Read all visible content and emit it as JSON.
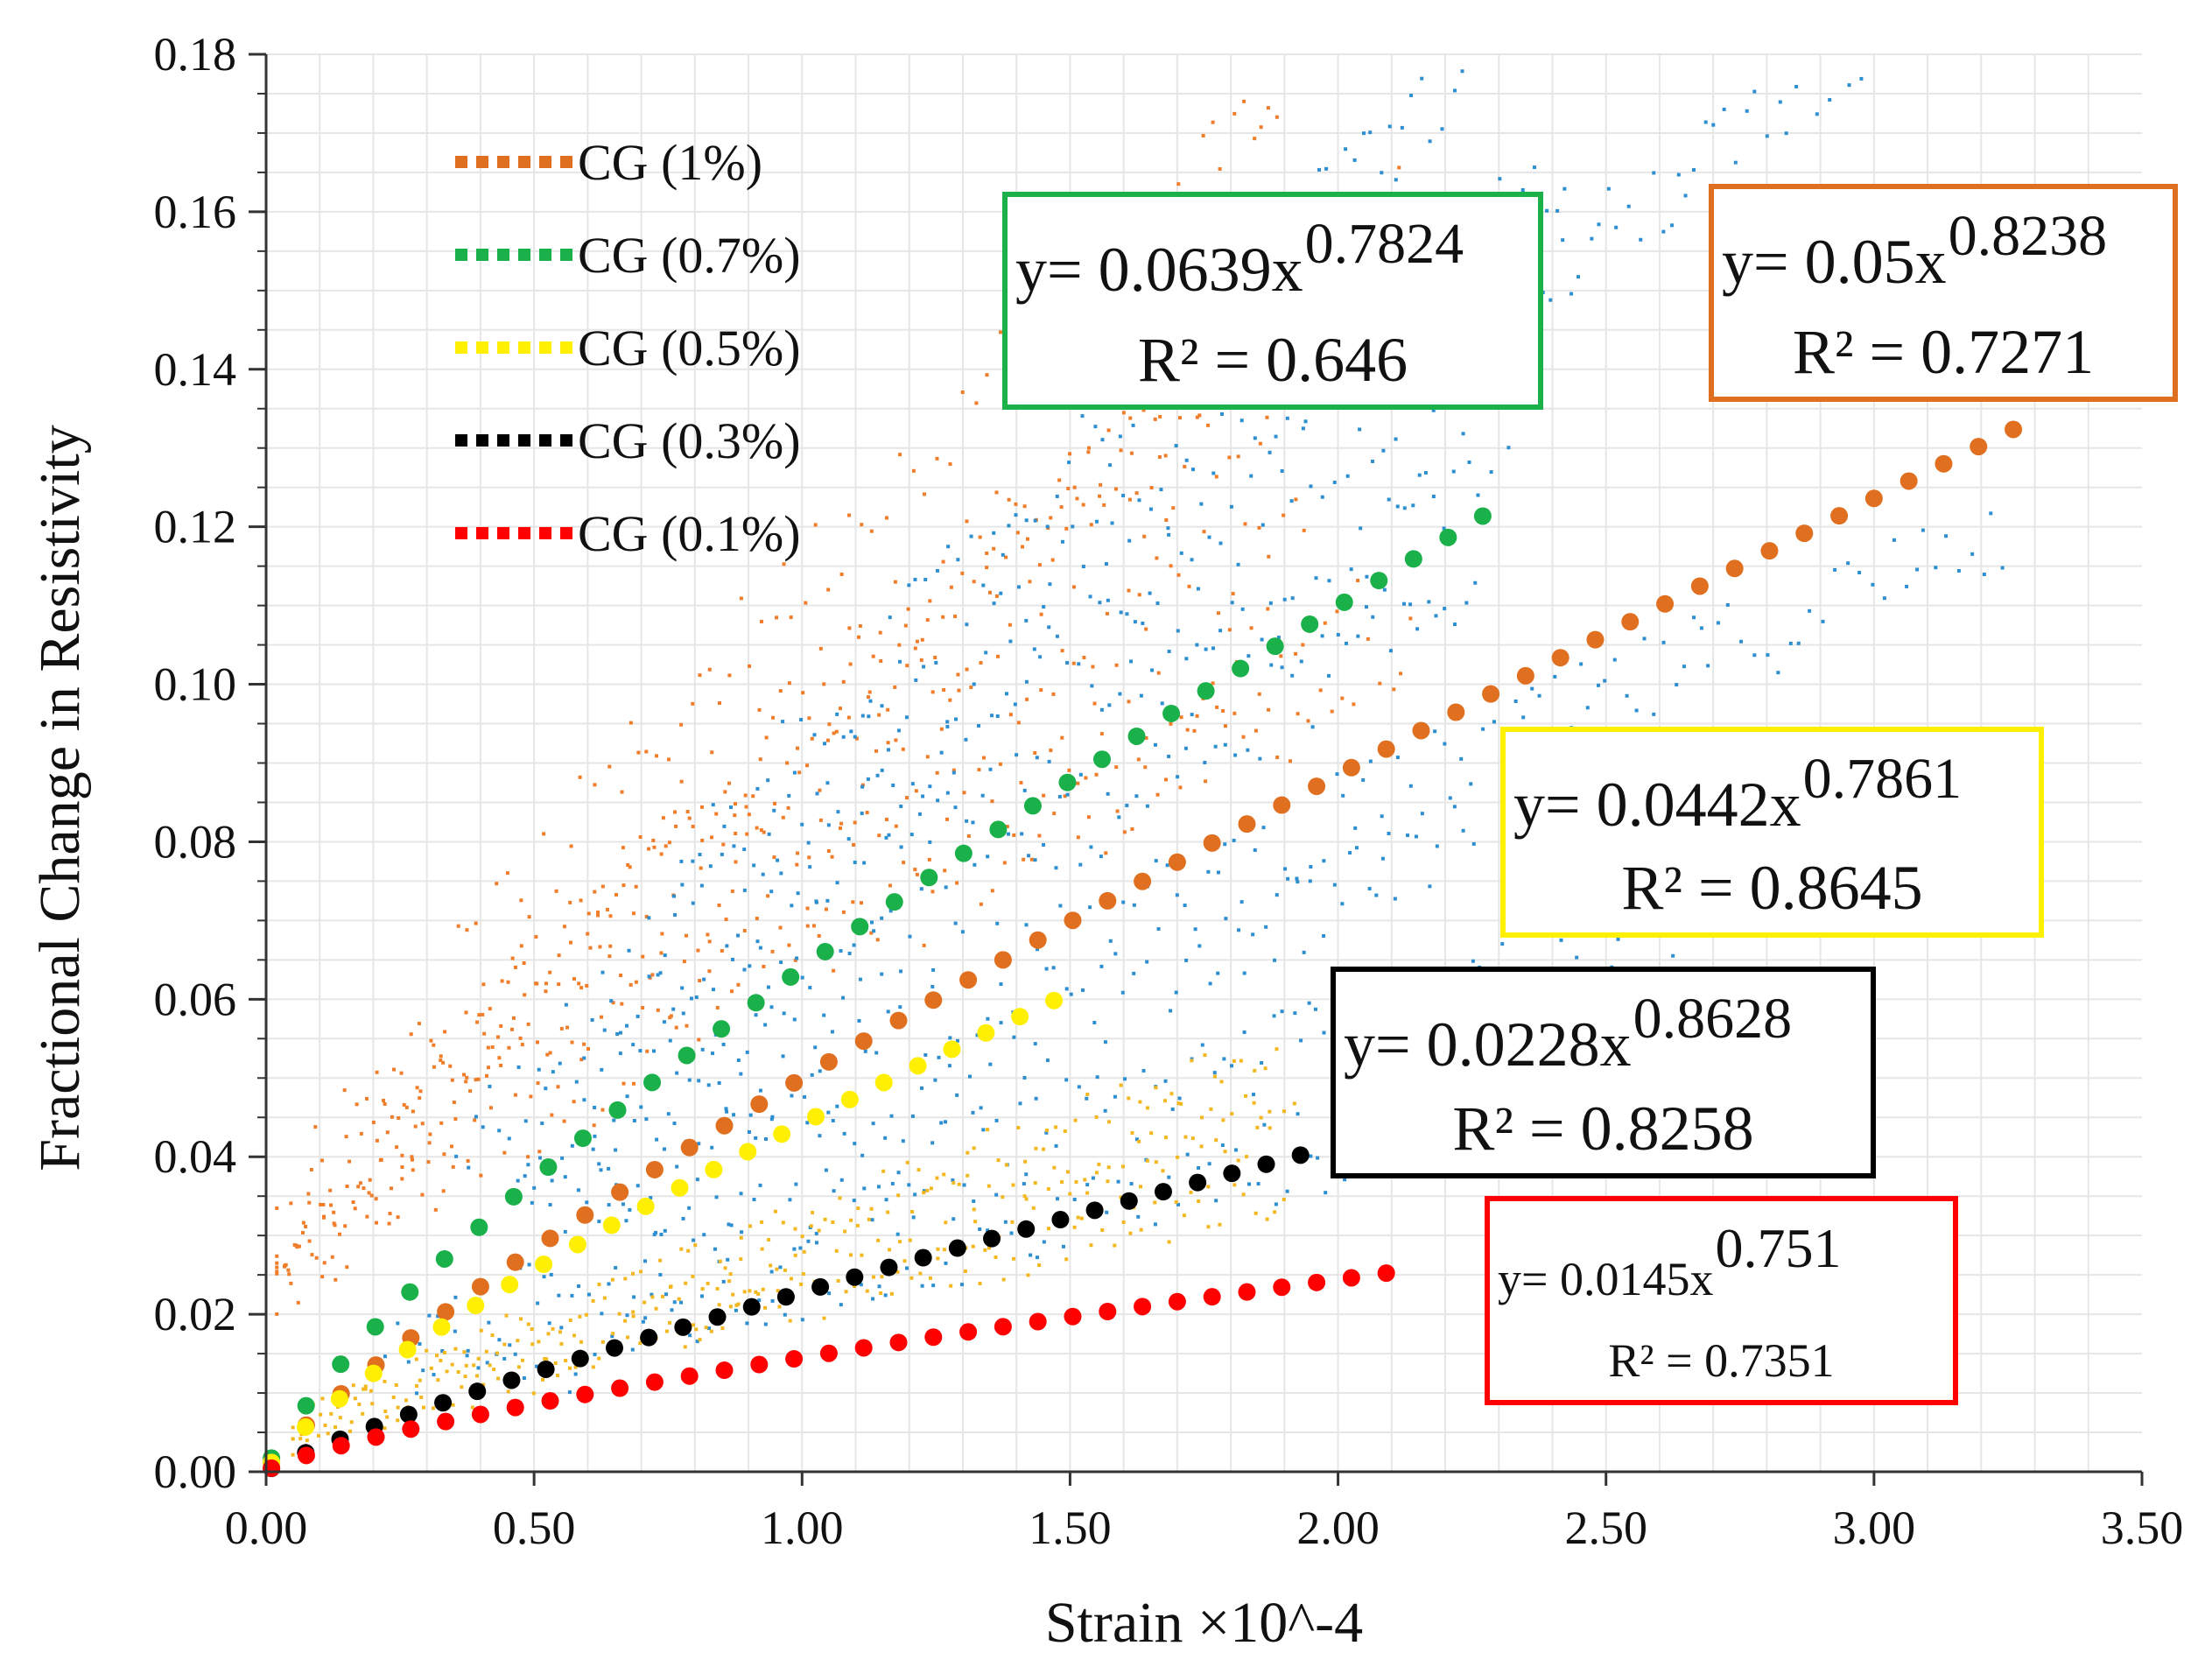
{
  "chart_data": {
    "type": "scatter",
    "title": "",
    "xlabel": "Strain ×10^-4",
    "ylabel": "Fractional Change in Resistivity",
    "xlim": [
      0,
      3.5
    ],
    "ylim": [
      0,
      0.18
    ],
    "x_ticks": [
      "0.00",
      "0.50",
      "1.00",
      "1.50",
      "2.00",
      "2.50",
      "3.00",
      "3.50"
    ],
    "y_ticks": [
      "0.00",
      "0.02",
      "0.04",
      "0.06",
      "0.08",
      "0.10",
      "0.12",
      "0.14",
      "0.16",
      "0.18"
    ],
    "grid": true,
    "legend_position": "top-left",
    "series": [
      {
        "name": "CG (1%)",
        "color": "#e07020",
        "trend": {
          "a": 0.05,
          "b": 0.8238,
          "x_max": 3.26
        },
        "equation": "y= 0.05x",
        "exponent": "0.8238",
        "r2_label": "R² = 0.7271",
        "box_color": "#e07020",
        "annotation_position": "top-right"
      },
      {
        "name": "CG (0.7%)",
        "color": "#1ab04a",
        "trend": {
          "a": 0.0639,
          "b": 0.7824,
          "x_max": 2.27
        },
        "equation": "y= 0.0639x",
        "exponent": "0.7824",
        "r2_label": "R² = 0.646",
        "box_color": "#1ab04a",
        "annotation_position": "top-center"
      },
      {
        "name": "CG (0.5%)",
        "color": "#ffef00",
        "trend": {
          "a": 0.0442,
          "b": 0.7861,
          "x_max": 1.47
        },
        "equation": "y= 0.0442x",
        "exponent": "0.7861",
        "r2_label": "R² = 0.8645",
        "box_color": "#ffef00",
        "annotation_position": "middle-right"
      },
      {
        "name": "CG (0.3%)",
        "color": "#000000",
        "trend": {
          "a": 0.0228,
          "b": 0.8628,
          "x_max": 1.93
        },
        "equation": "y= 0.0228x",
        "exponent": "0.8628",
        "r2_label": "R² = 0.8258",
        "box_color": "#000000",
        "annotation_position": "lower-center-right"
      },
      {
        "name": "CG (0.1%)",
        "color": "#ff0000",
        "trend": {
          "a": 0.0145,
          "b": 0.751,
          "x_max": 2.09
        },
        "equation": "y= 0.0145x",
        "exponent": "0.751",
        "r2_label": "R² = 0.7351",
        "box_color": "#ff0000",
        "annotation_position": "bottom-right"
      }
    ],
    "raw_data_colors": {
      "orange": "#ef7d2a",
      "blue": "#2e8fd0",
      "gold": "#f3b81f"
    }
  }
}
